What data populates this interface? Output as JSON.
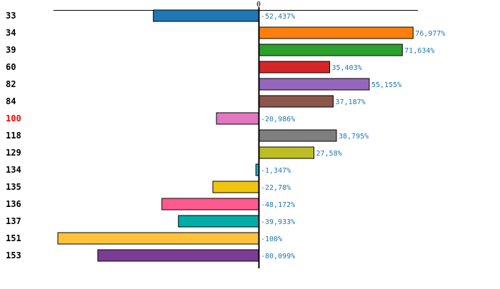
{
  "chart_data": {
    "type": "bar",
    "orientation": "horizontal",
    "title": "",
    "xlabel": "",
    "ylabel": "",
    "xlim": [
      -100,
      80
    ],
    "x_ticks": [
      "0"
    ],
    "grid": false,
    "categories": [
      "33",
      "34",
      "39",
      "60",
      "82",
      "84",
      "100",
      "118",
      "129",
      "134",
      "135",
      "136",
      "137",
      "151",
      "153"
    ],
    "values": [
      -52.437,
      76.977,
      71.634,
      35.403,
      55.155,
      37.187,
      -20.986,
      38.795,
      27.58,
      -1.347,
      -22.78,
      -48.172,
      -39.933,
      -100,
      -80.099
    ],
    "value_labels": [
      "-52,437%",
      "76,977%",
      "71,634%",
      "35,403%",
      "55,155%",
      "37,187%",
      "-20,986%",
      "38,795%",
      "27,58%",
      "-1,347%",
      "-22,78%",
      "-48,172%",
      "-39,933%",
      "-100%",
      "-80,099%"
    ],
    "bar_colors": [
      "#1f77b4",
      "#ff7f0e",
      "#2ca02c",
      "#d62728",
      "#9467bd",
      "#8c564b",
      "#e377c2",
      "#7f7f7f",
      "#bcbd22",
      "#17becf",
      "#f1c40f",
      "#ff5a8f",
      "#03aca9",
      "#ffc23a",
      "#7b3c96"
    ],
    "highlighted_category": "100",
    "highlight_color": "#ff0000",
    "label_color": "#1f77b4"
  }
}
